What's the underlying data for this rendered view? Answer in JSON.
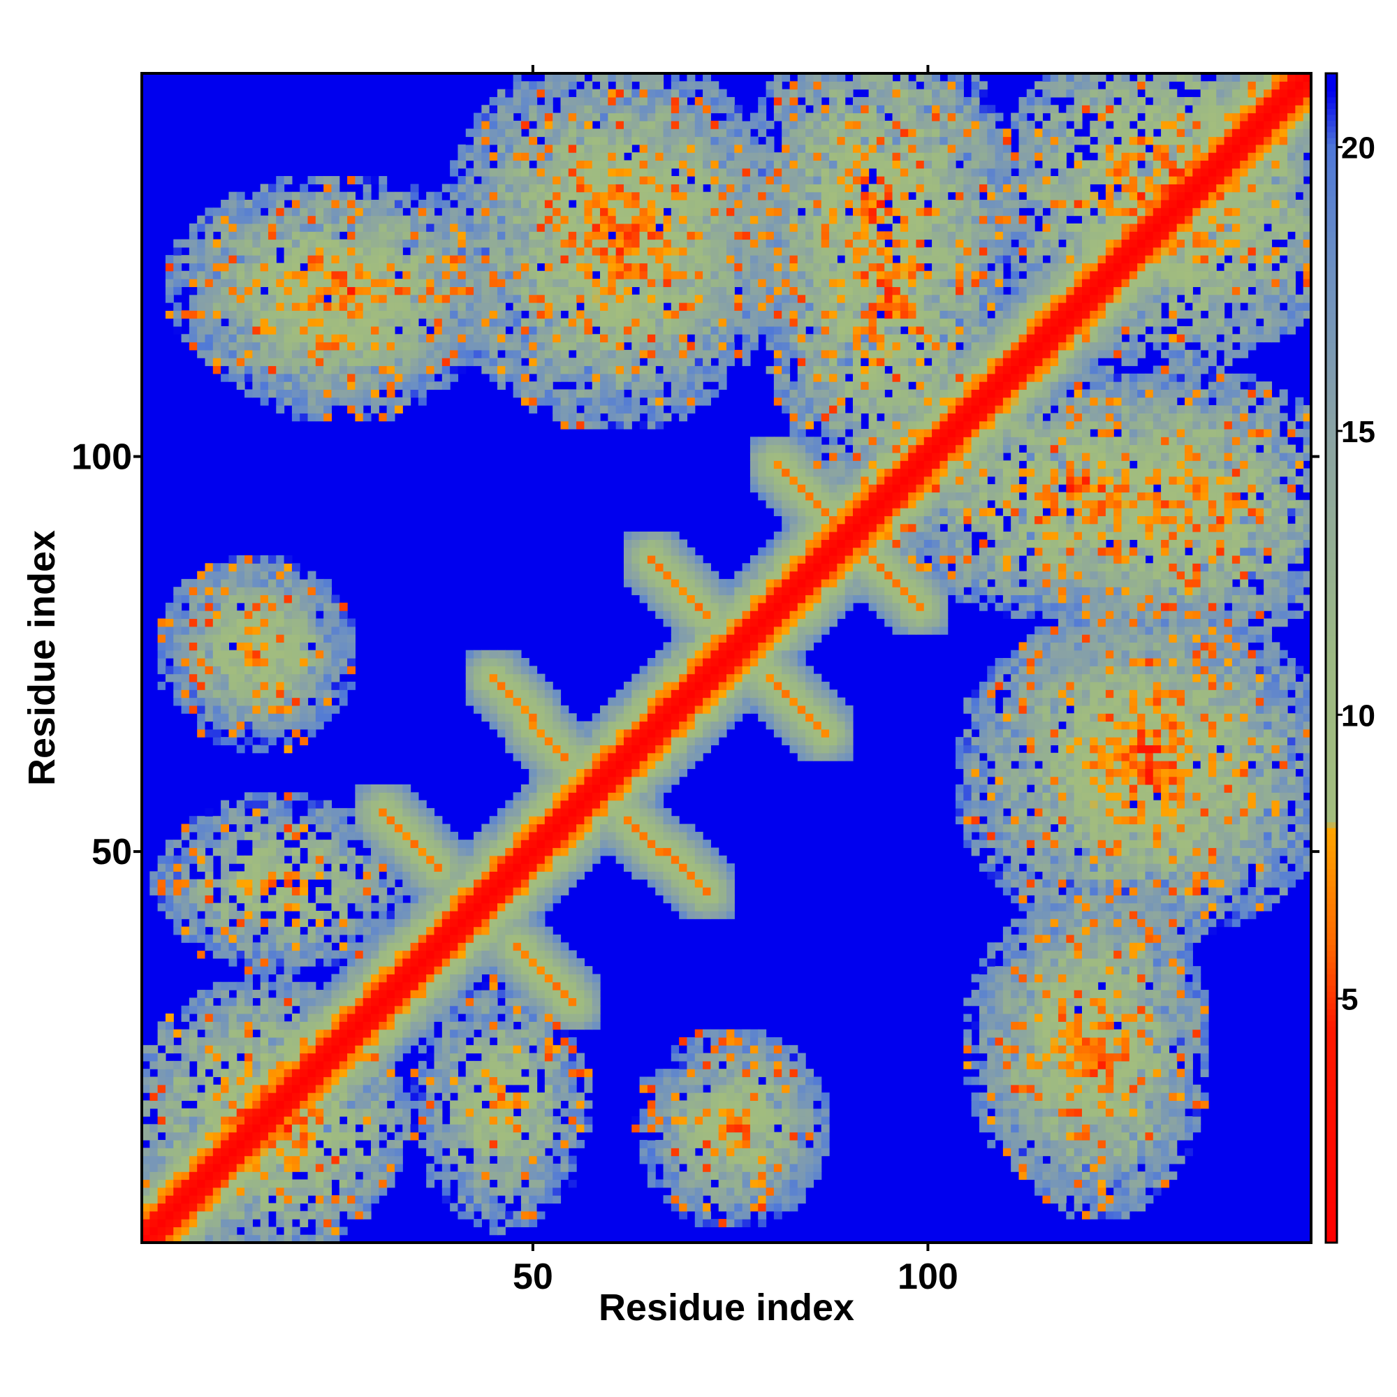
{
  "chart_data": {
    "type": "heatmap",
    "title": "",
    "xlabel": "Residue index",
    "ylabel": "Residue index",
    "residue_count": 148,
    "xlim": [
      1,
      148
    ],
    "ylim": [
      1,
      148
    ],
    "x_ticks": [
      50,
      100
    ],
    "y_ticks": [
      50,
      100
    ],
    "colorbar": {
      "range": [
        0.7,
        21.3
      ],
      "ticks": [
        5,
        10,
        15,
        20
      ],
      "color_stops": [
        {
          "value": 0.7,
          "color": "#ff0000"
        },
        {
          "value": 4.5,
          "color": "#ff1a00"
        },
        {
          "value": 6.0,
          "color": "#ff6a00"
        },
        {
          "value": 8.0,
          "color": "#ffa500"
        },
        {
          "value": 8.1,
          "color": "#a3bd7e"
        },
        {
          "value": 11.0,
          "color": "#9db983"
        },
        {
          "value": 15.0,
          "color": "#8aa3a4"
        },
        {
          "value": 18.0,
          "color": "#6b8fc4"
        },
        {
          "value": 20.0,
          "color": "#4f78d8"
        },
        {
          "value": 21.0,
          "color": "#0000ee"
        },
        {
          "value": 21.3,
          "color": "#0000ee"
        }
      ]
    },
    "background_value": 21.3,
    "background_color": "#0000ee",
    "contact_features": [
      {
        "kind": "diagonal_band",
        "description": "main diagonal",
        "distance": 1.5
      },
      {
        "kind": "blob",
        "x": [
          5,
          28
        ],
        "y": [
          5,
          28
        ],
        "min_distance": 5
      },
      {
        "kind": "blob",
        "x": [
          8,
          28
        ],
        "y": [
          40,
          52
        ],
        "min_distance": 7
      },
      {
        "kind": "blob",
        "x": [
          40,
          52
        ],
        "y": [
          8,
          28
        ],
        "min_distance": 7
      },
      {
        "kind": "antiparallel_strand",
        "x_from": 31,
        "y_from": 55,
        "x_to": 38,
        "y_to": 48,
        "distance": 6
      },
      {
        "kind": "antiparallel_strand",
        "x_from": 48,
        "y_from": 38,
        "x_to": 55,
        "y_to": 31,
        "distance": 6
      },
      {
        "kind": "antiparallel_strand",
        "x_from": 45,
        "y_from": 72,
        "x_to": 54,
        "y_to": 62,
        "distance": 6
      },
      {
        "kind": "antiparallel_strand",
        "x_from": 62,
        "y_from": 54,
        "x_to": 72,
        "y_to": 45,
        "distance": 6
      },
      {
        "kind": "antiparallel_strand",
        "x_from": 65,
        "y_from": 87,
        "x_to": 72,
        "y_to": 80,
        "distance": 6
      },
      {
        "kind": "antiparallel_strand",
        "x_from": 80,
        "y_from": 72,
        "x_to": 87,
        "y_to": 65,
        "distance": 6
      },
      {
        "kind": "antiparallel_strand",
        "x_from": 81,
        "y_from": 99,
        "x_to": 88,
        "y_to": 92,
        "distance": 6
      },
      {
        "kind": "antiparallel_strand",
        "x_from": 92,
        "y_from": 88,
        "x_to": 99,
        "y_to": 81,
        "distance": 6
      },
      {
        "kind": "blob",
        "x": [
          8,
          22
        ],
        "y": [
          70,
          82
        ],
        "min_distance": 7
      },
      {
        "kind": "blob",
        "x": [
          70,
          82
        ],
        "y": [
          8,
          22
        ],
        "min_distance": 7
      },
      {
        "kind": "blob",
        "x": [
          10,
          40
        ],
        "y": [
          113,
          130
        ],
        "min_distance": 6
      },
      {
        "kind": "blob",
        "x": [
          113,
          130
        ],
        "y": [
          10,
          40
        ],
        "min_distance": 6
      },
      {
        "kind": "blob",
        "x": [
          45,
          75
        ],
        "y": [
          110,
          145
        ],
        "min_distance": 6
      },
      {
        "kind": "blob",
        "x": [
          110,
          145
        ],
        "y": [
          45,
          75
        ],
        "min_distance": 6
      },
      {
        "kind": "blob",
        "x": [
          82,
          105
        ],
        "y": [
          118,
          148
        ],
        "min_distance": 6
      },
      {
        "kind": "blob",
        "x": [
          118,
          148
        ],
        "y": [
          82,
          105
        ],
        "min_distance": 6
      },
      {
        "kind": "blob",
        "x": [
          110,
          128
        ],
        "y": [
          13,
          38
        ],
        "min_distance": 7
      },
      {
        "kind": "blob",
        "x": [
          13,
          38
        ],
        "y": [
          110,
          128
        ],
        "min_distance": 7
      },
      {
        "kind": "blob",
        "x": [
          68,
          82
        ],
        "y": [
          8,
          22
        ],
        "min_distance": 8
      },
      {
        "kind": "blob",
        "x": [
          8,
          22
        ],
        "y": [
          68,
          82
        ],
        "min_distance": 8
      },
      {
        "kind": "blob",
        "x": [
          115,
          148
        ],
        "y": [
          118,
          148
        ],
        "min_distance": 5
      },
      {
        "kind": "blob",
        "x": [
          100,
          140
        ],
        "y": [
          85,
          105
        ],
        "min_distance": 6
      },
      {
        "kind": "blob",
        "x": [
          85,
          105
        ],
        "y": [
          100,
          140
        ],
        "min_distance": 6
      },
      {
        "kind": "blob",
        "x": [
          115,
          140
        ],
        "y": [
          50,
          75
        ],
        "min_distance": 6
      },
      {
        "kind": "blob",
        "x": [
          50,
          75
        ],
        "y": [
          115,
          140
        ],
        "min_distance": 6
      }
    ]
  }
}
